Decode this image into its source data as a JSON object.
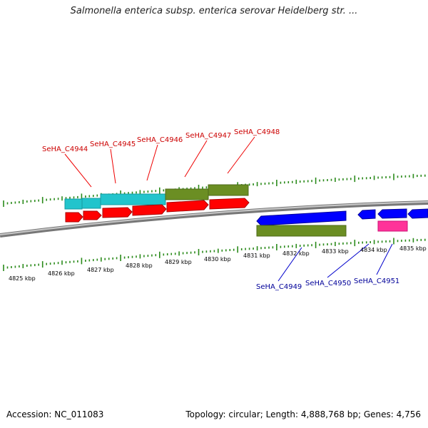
{
  "title": "Salmonella enterica subsp. enterica serovar Heidelberg str. ...",
  "footer": {
    "accession": "Accession: NC_011083",
    "summary": "Topology: circular; Length: 4,888,768 bp; Genes: 4,756"
  },
  "colors": {
    "backbone": "#888888",
    "tick": "#2a8a1a",
    "cds_forward": "#ff0000",
    "cds_reverse": "#0000ff",
    "rna_pink": "#ff3399",
    "gene_cyan": "#22c4cc",
    "gene_olive": "#6b8e23",
    "label_forward": "#cc0000",
    "label_reverse": "#000099"
  },
  "scale_labels": [
    "4825 kbp",
    "4826 kbp",
    "4827 kbp",
    "4828 kbp",
    "4829 kbp",
    "4830 kbp",
    "4831 kbp",
    "4832 kbp",
    "4833 kbp",
    "4834 kbp",
    "4835 kbp"
  ],
  "forward_genes": [
    "SeHA_C4944",
    "SeHA_C4945",
    "SeHA_C4946",
    "SeHA_C4947",
    "SeHA_C4948"
  ],
  "reverse_genes": [
    "SeHA_C4949",
    "SeHA_C4950",
    "SeHA_C4951"
  ]
}
